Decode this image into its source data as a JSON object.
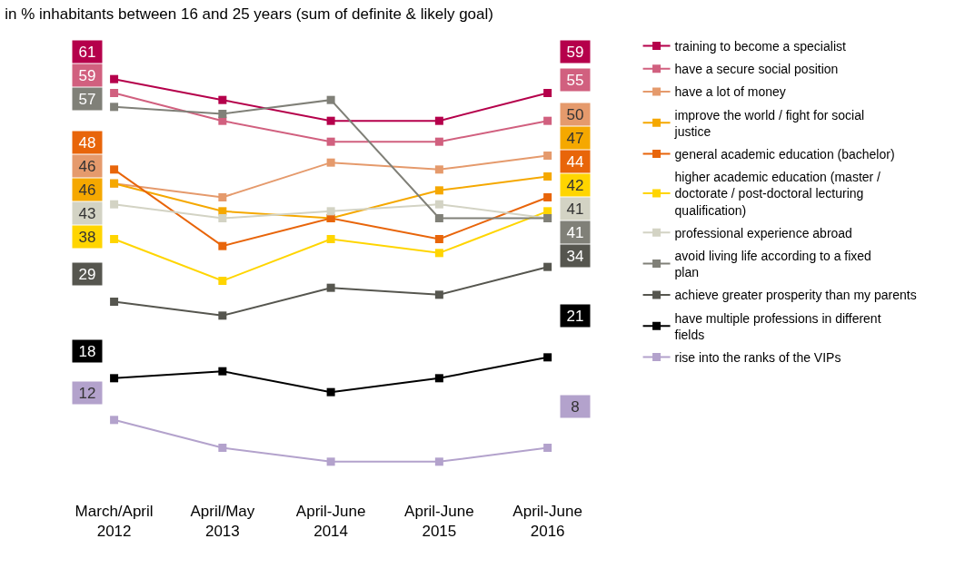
{
  "chart_data": {
    "type": "line",
    "title": "in % inhabitants between 16 and 25 years (sum of definite & likely goal)",
    "categories": [
      "March/April 2012",
      "April/May 2013",
      "April-June 2014",
      "April-June 2015",
      "April-June 2016"
    ],
    "series": [
      {
        "name": "training to become a specialist",
        "color": "#b5004b",
        "values": [
          61,
          58,
          55,
          55,
          59
        ],
        "value_labels": [
          "61",
          null,
          null,
          null,
          "59"
        ]
      },
      {
        "name": "have a secure social position",
        "color": "#d1607f",
        "values": [
          59,
          55,
          52,
          52,
          55
        ],
        "value_labels": [
          "59",
          null,
          null,
          null,
          "55"
        ]
      },
      {
        "name": "have a lot of money",
        "color": "#e59a6c",
        "values": [
          46,
          44,
          49,
          48,
          50
        ],
        "value_labels": [
          "46",
          null,
          null,
          null,
          "50"
        ]
      },
      {
        "name": "improve the world / fight for social justice",
        "color": "#f5a800",
        "values": [
          46,
          42,
          41,
          45,
          47
        ],
        "value_labels": [
          "46",
          null,
          null,
          null,
          "47"
        ]
      },
      {
        "name": "general academic education (bachelor)",
        "color": "#e8650a",
        "values": [
          48,
          37,
          41,
          38,
          44
        ],
        "value_labels": [
          "48",
          null,
          null,
          null,
          "44"
        ]
      },
      {
        "name": "higher academic education (master / doctorate / post-doctoral lecturing qualification)",
        "color": "#ffd500",
        "values": [
          38,
          32,
          38,
          36,
          42
        ],
        "value_labels": [
          "38",
          null,
          null,
          null,
          "42"
        ]
      },
      {
        "name": "professional experience abroad",
        "color": "#d3d3c4",
        "values": [
          43,
          41,
          42,
          43,
          41
        ],
        "value_labels": [
          "43",
          null,
          null,
          null,
          "41"
        ]
      },
      {
        "name": "avoid living life according to a fixed plan",
        "color": "#808078",
        "values": [
          57,
          56,
          58,
          41,
          41
        ],
        "value_labels": [
          "57",
          null,
          null,
          null,
          "41"
        ]
      },
      {
        "name": "achieve greater prosperity than my parents",
        "color": "#56564f",
        "values": [
          29,
          27,
          31,
          30,
          34
        ],
        "value_labels": [
          "29",
          null,
          null,
          null,
          "34"
        ]
      },
      {
        "name": "have multiple professions in different fields",
        "color": "#000000",
        "values": [
          18,
          19,
          16,
          18,
          21
        ],
        "value_labels": [
          "18",
          null,
          null,
          null,
          "21"
        ]
      },
      {
        "name": "rise into the ranks of the VIPs",
        "color": "#b3a2cc",
        "values": [
          12,
          8,
          6,
          6,
          8
        ],
        "value_labels": [
          "12",
          null,
          null,
          null,
          "8"
        ]
      }
    ],
    "marker": "square",
    "line_style": "solid",
    "legend": "right"
  }
}
